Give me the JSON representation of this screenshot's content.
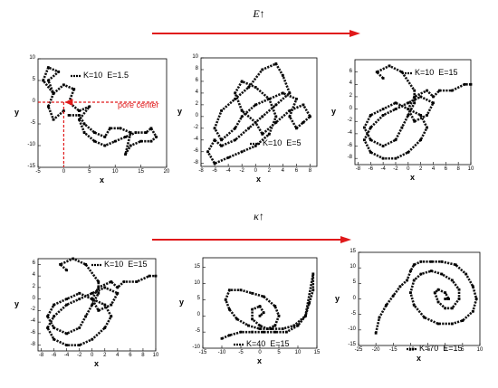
{
  "headers": {
    "top": {
      "symbol": "E",
      "arrow": "↑"
    },
    "bottom": {
      "symbol": "κ",
      "arrow": "↑"
    },
    "arrow_color": "#e0191a"
  },
  "annotation": {
    "text": "pore center",
    "color": "#e0191a"
  },
  "chart_data": [
    {
      "type": "scatter",
      "legend": "K=10  E=1.5",
      "xlabel": "x",
      "ylabel": "y",
      "xlim": [
        -5,
        20
      ],
      "ylim": [
        -15,
        10
      ],
      "xticks": [
        -5,
        0,
        5,
        10,
        15,
        20
      ],
      "yticks": [
        -15,
        -10,
        -5,
        0,
        5,
        10
      ],
      "series": [
        {
          "x": [
            0,
            -2,
            -3,
            -2,
            -3,
            -1,
            -3,
            -4,
            -2,
            0,
            2,
            1,
            3,
            5,
            3,
            4,
            6,
            8,
            10,
            12,
            14,
            16,
            17,
            18,
            17,
            15,
            13,
            12,
            13,
            11,
            9,
            8,
            6,
            4,
            3,
            1
          ],
          "y": [
            -2,
            -4,
            -1,
            2,
            5,
            7,
            8,
            5,
            2,
            4,
            3,
            0,
            -2,
            -1,
            -4,
            -7,
            -9,
            -10,
            -9,
            -8,
            -7,
            -7,
            -6,
            -8,
            -9,
            -9,
            -10,
            -12,
            -7,
            -6,
            -6,
            -8,
            -7,
            -5,
            -3,
            -3
          ]
        }
      ]
    },
    {
      "type": "scatter",
      "legend": "K=10  E=5",
      "xlabel": "x",
      "ylabel": "y",
      "xlim": [
        -8,
        9
      ],
      "ylim": [
        -8.5,
        10
      ],
      "xticks": [
        -8,
        -6,
        -4,
        -2,
        0,
        2,
        4,
        6,
        8
      ],
      "yticks": [
        -8,
        -6,
        -4,
        -2,
        0,
        2,
        4,
        6,
        8,
        10
      ],
      "series": [
        {
          "x": [
            -6,
            -7,
            -6,
            -4,
            -2,
            0,
            2,
            3,
            2,
            0,
            -2,
            -3,
            -2,
            0,
            1,
            3,
            5,
            7,
            8,
            7,
            6,
            5,
            6,
            4,
            2,
            0,
            -2,
            -3,
            -5,
            -6,
            -5,
            -3,
            -1,
            1,
            3,
            4,
            5,
            3,
            1,
            -1,
            -3,
            -5,
            -6
          ],
          "y": [
            -4,
            -6,
            -8,
            -7,
            -6,
            -5,
            -3,
            0,
            3,
            5,
            6,
            4,
            1,
            -1,
            -3,
            -1,
            1,
            2,
            0,
            -1,
            -2,
            0,
            3,
            4,
            3,
            2,
            0,
            -2,
            -4,
            -2,
            1,
            3,
            5,
            8,
            9,
            7,
            4,
            2,
            0,
            -2,
            -4,
            -5,
            -4
          ]
        }
      ]
    },
    {
      "type": "scatter",
      "legend": "K=10  E=15",
      "xlabel": "x",
      "ylabel": "y",
      "xlim": [
        -8.5,
        10
      ],
      "ylim": [
        -9,
        8
      ],
      "xticks": [
        -8,
        -6,
        -4,
        -2,
        0,
        2,
        4,
        6,
        8,
        10
      ],
      "yticks": [
        -8,
        -6,
        -4,
        -2,
        0,
        2,
        4,
        6
      ],
      "series": [
        {
          "x": [
            -4,
            -5,
            -3,
            -1,
            1,
            1,
            0,
            -1,
            -2,
            -4,
            -6,
            -7,
            -6,
            -4,
            -2,
            0,
            2,
            3,
            2,
            0,
            -2,
            -4,
            -6,
            -7,
            -6,
            -4,
            -2,
            0,
            2,
            4,
            3,
            1,
            0,
            1,
            3,
            4,
            5,
            7,
            9,
            10
          ],
          "y": [
            5,
            6,
            7,
            6,
            3,
            1,
            -1,
            -3,
            -5,
            -6,
            -5,
            -3,
            -1,
            0,
            1,
            0,
            -1,
            -3,
            -5,
            -7,
            -8,
            -8,
            -7,
            -5,
            -3,
            -1,
            0,
            1,
            2,
            1,
            -1,
            -2,
            0,
            2,
            3,
            2,
            3,
            3,
            4,
            4
          ]
        }
      ]
    },
    {
      "type": "scatter",
      "legend": "K=10  E=15",
      "xlabel": "x",
      "ylabel": "y",
      "xlim": [
        -8.5,
        10
      ],
      "ylim": [
        -9,
        7
      ],
      "xticks": [
        -8,
        -6,
        -4,
        -2,
        0,
        2,
        4,
        6,
        8,
        10
      ],
      "yticks": [
        -8,
        -6,
        -4,
        -2,
        0,
        2,
        4,
        6
      ],
      "series": [
        {
          "x": [
            -4,
            -5,
            -3,
            -1,
            1,
            1,
            0,
            -1,
            -2,
            -4,
            -6,
            -7,
            -6,
            -4,
            -2,
            0,
            2,
            3,
            2,
            0,
            -2,
            -4,
            -6,
            -7,
            -6,
            -4,
            -2,
            0,
            2,
            4,
            3,
            1,
            0,
            1,
            3,
            4,
            5,
            7,
            9,
            10
          ],
          "y": [
            5,
            6,
            7,
            6,
            3,
            1,
            -1,
            -3,
            -5,
            -6,
            -5,
            -3,
            -1,
            0,
            1,
            0,
            -1,
            -3,
            -5,
            -7,
            -8,
            -8,
            -7,
            -5,
            -3,
            -1,
            0,
            1,
            2,
            1,
            -1,
            -2,
            0,
            2,
            3,
            2,
            3,
            3,
            4,
            4
          ]
        }
      ]
    },
    {
      "type": "scatter",
      "legend": "K=40  E=15",
      "xlabel": "x",
      "ylabel": "y",
      "xlim": [
        -15,
        15
      ],
      "ylim": [
        -10,
        18
      ],
      "xticks": [
        -15,
        -10,
        -5,
        0,
        5,
        10,
        15
      ],
      "yticks": [
        -10,
        -5,
        0,
        5,
        10,
        15
      ],
      "series": [
        {
          "x": [
            -10,
            -8,
            -5,
            -2,
            1,
            4,
            7,
            10,
            12,
            13,
            14,
            14,
            12,
            9,
            6,
            3,
            0,
            -3,
            -6,
            -8,
            -9,
            -8,
            -5,
            -2,
            1,
            4,
            5,
            4,
            2,
            0,
            -2,
            -2,
            0,
            1,
            0
          ],
          "y": [
            -7,
            -6,
            -5,
            -5,
            -5,
            -5,
            -5,
            -3,
            0,
            4,
            8,
            13,
            0,
            -3,
            -4,
            -4,
            -4,
            -3,
            -1,
            2,
            5,
            8,
            8,
            7,
            6,
            3,
            0,
            -3,
            -4,
            -3,
            -1,
            2,
            3,
            1,
            0
          ]
        }
      ]
    },
    {
      "type": "scatter",
      "legend": "K=70  E=15",
      "xlabel": "x",
      "ylabel": "y",
      "xlim": [
        -25,
        10
      ],
      "ylim": [
        -15,
        15
      ],
      "xticks": [
        -25,
        -20,
        -15,
        -10,
        -5,
        0,
        5,
        10
      ],
      "yticks": [
        -15,
        -10,
        -5,
        0,
        5,
        10,
        15
      ],
      "series": [
        {
          "x": [
            -20,
            -19,
            -17,
            -15,
            -13,
            -11,
            -10,
            -9,
            -7,
            -4,
            -1,
            3,
            6,
            8,
            9,
            8,
            5,
            2,
            -2,
            -6,
            -9,
            -10,
            -9,
            -7,
            -4,
            -1,
            2,
            4,
            4,
            2,
            0,
            -2,
            -3,
            -2,
            0,
            1,
            0
          ],
          "y": [
            -11,
            -6,
            -2,
            1,
            4,
            6,
            9,
            11,
            12,
            12,
            12,
            11,
            8,
            4,
            0,
            -4,
            -7,
            -8,
            -8,
            -6,
            -2,
            2,
            6,
            8,
            9,
            8,
            6,
            3,
            0,
            -3,
            -3,
            -1,
            2,
            3,
            2,
            0,
            0
          ]
        }
      ]
    }
  ]
}
